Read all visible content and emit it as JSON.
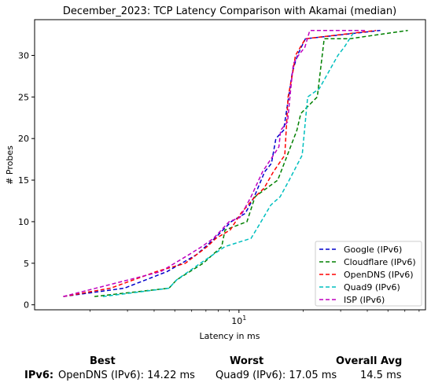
{
  "chart_data": {
    "type": "line",
    "title": "December_2023: TCP Latency Comparison with Akamai (median)",
    "xlabel": "Latency in ms",
    "ylabel": "# Probes",
    "xscale": "log",
    "xlim": [
      1.1,
      75
    ],
    "ylim": [
      -0.6,
      34.3
    ],
    "xticks": [
      {
        "value": 10,
        "label": "10^1"
      }
    ],
    "yticks": [
      0,
      5,
      10,
      15,
      20,
      25,
      30
    ],
    "grid": false,
    "legend_position": "lower-right",
    "series": [
      {
        "name": "Google (IPv6)",
        "color": "#0000cc",
        "x": [
          1.5,
          2.9,
          4.6,
          6.3,
          7.7,
          9.2,
          10.7,
          11.8,
          13.2,
          14.2,
          14.9,
          16.2,
          17.1,
          17.8,
          18.8,
          20.5,
          46
        ],
        "y": [
          1,
          2,
          4,
          6,
          8,
          10,
          11,
          13,
          16,
          17,
          20,
          21,
          25,
          28,
          30,
          32,
          33
        ]
      },
      {
        "name": "Cloudflare (IPv6)",
        "color": "#008000",
        "x": [
          2.1,
          4.7,
          5.1,
          6.8,
          8.3,
          8.6,
          10.9,
          11.9,
          15.2,
          16.3,
          18.7,
          19.5,
          21.3,
          23.3,
          25.1,
          33,
          62
        ],
        "y": [
          1,
          2,
          3,
          5,
          7,
          9,
          10,
          13,
          15,
          17,
          21,
          23,
          24,
          25,
          32,
          32,
          33
        ]
      },
      {
        "name": "OpenDNS (IPv6)",
        "color": "#ff0000",
        "x": [
          1.5,
          2.5,
          4.1,
          5.6,
          7.1,
          7.8,
          9.1,
          10.2,
          11.9,
          13.1,
          14.5,
          16.4,
          17.0,
          17.9,
          18.4,
          20.5,
          44
        ],
        "y": [
          1,
          2,
          4,
          5,
          7,
          8,
          9,
          11,
          13,
          14,
          16,
          18,
          25,
          28,
          30,
          32,
          33
        ]
      },
      {
        "name": "Quad9 (IPv6)",
        "color": "#00bfbf",
        "x": [
          2.3,
          4.7,
          5.1,
          6.6,
          8.6,
          11.4,
          12.7,
          14.1,
          15.6,
          17.2,
          19.8,
          21.0,
          23.8,
          29.1,
          31.2,
          35
        ],
        "y": [
          1,
          2,
          3,
          5,
          7,
          8,
          10,
          12,
          13,
          15,
          18,
          25,
          26,
          30,
          31,
          33
        ]
      },
      {
        "name": "ISP (IPv6)",
        "color": "#bf00bf",
        "x": [
          1.5,
          4.3,
          5.8,
          6.7,
          7.6,
          9.0,
          10.1,
          11.4,
          12.9,
          15.4,
          15.7,
          16.9,
          17.5,
          18.0,
          19.0,
          20.4,
          21.5,
          39
        ],
        "y": [
          1,
          4,
          6,
          7,
          8,
          10,
          10.5,
          13,
          16,
          19,
          21,
          22,
          26,
          29,
          30,
          31,
          33,
          33
        ]
      }
    ]
  },
  "summary": {
    "headers": {
      "best": "Best",
      "worst": "Worst",
      "avg": "Overall Avg"
    },
    "row_label": "IPv6:",
    "best": "OpenDNS (IPv6): 14.22 ms",
    "worst": "Quad9 (IPv6): 17.05 ms",
    "avg": "14.5 ms"
  }
}
